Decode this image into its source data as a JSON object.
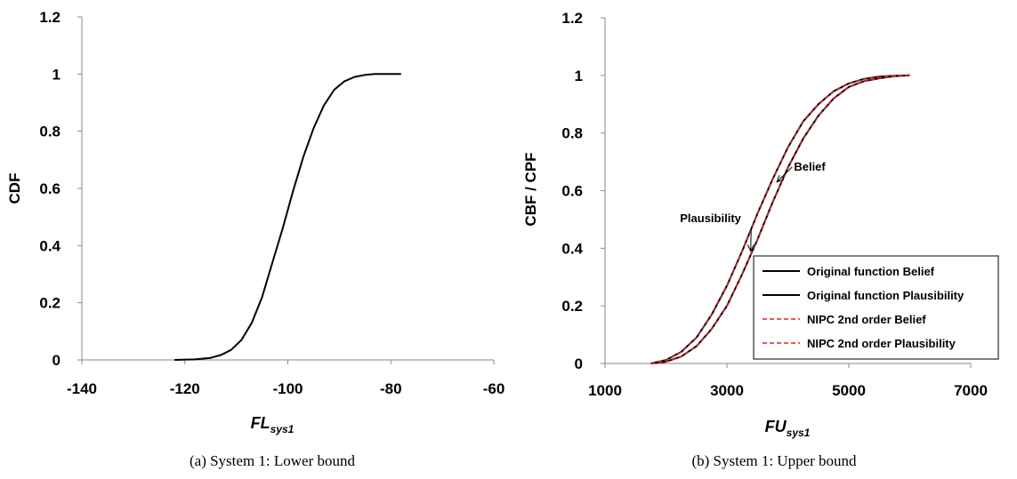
{
  "chart_data": [
    {
      "type": "line",
      "caption": "(a)  System 1: Lower bound",
      "ylabel": "CDF",
      "xlabel_main": "FL",
      "xlabel_sub": "sys1",
      "xlim": [
        -140,
        -60
      ],
      "ylim": [
        0,
        1.2
      ],
      "xticks": [
        "-140",
        "-120",
        "-100",
        "-80",
        "-60"
      ],
      "yticks": [
        "0",
        "0.2",
        "0.4",
        "0.6",
        "0.8",
        "1",
        "1.2"
      ],
      "series": [
        {
          "color": "#000000",
          "style": "solid",
          "x": [
            -122,
            -118,
            -115,
            -113,
            -111,
            -109,
            -107,
            -105,
            -103,
            -101,
            -99,
            -97,
            -95,
            -93,
            -91,
            -89,
            -87,
            -85,
            -83,
            -80,
            -78
          ],
          "y": [
            0.0,
            0.002,
            0.007,
            0.017,
            0.035,
            0.07,
            0.13,
            0.22,
            0.34,
            0.46,
            0.59,
            0.71,
            0.81,
            0.89,
            0.945,
            0.975,
            0.99,
            0.997,
            1.0,
            1.0,
            1.0
          ]
        }
      ]
    },
    {
      "type": "line",
      "caption": "(b)  System 1: Upper bound",
      "ylabel": "CBF / CPF",
      "xlabel_main": "FU",
      "xlabel_sub": "sys1",
      "xlim": [
        1000,
        7000
      ],
      "ylim": [
        0,
        1.2
      ],
      "xticks": [
        "1000",
        "3000",
        "5000",
        "7000"
      ],
      "yticks": [
        "0",
        "0.2",
        "0.4",
        "0.6",
        "0.8",
        "1",
        "1.2"
      ],
      "annotations": [
        {
          "text": "Belief",
          "x": 4100,
          "y": 0.67,
          "arrow_to": [
            3820,
            0.63
          ]
        },
        {
          "text": "Plausibility",
          "x": 2230,
          "y": 0.49,
          "arrow_to": [
            3390,
            0.39
          ]
        }
      ],
      "legend_position": "bottom-right",
      "series": [
        {
          "name": "Original function Belief",
          "color": "#000000",
          "style": "solid",
          "x": [
            1750,
            2000,
            2250,
            2500,
            2750,
            3000,
            3250,
            3500,
            3750,
            4000,
            4250,
            4500,
            4750,
            5000,
            5250,
            5500,
            5750,
            6000
          ],
          "y": [
            0.0,
            0.006,
            0.024,
            0.06,
            0.12,
            0.2,
            0.31,
            0.43,
            0.56,
            0.68,
            0.78,
            0.86,
            0.92,
            0.96,
            0.98,
            0.99,
            0.997,
            1.0
          ]
        },
        {
          "name": "Original function Plausibility",
          "color": "#000000",
          "style": "solid",
          "x": [
            1750,
            2000,
            2250,
            2500,
            2750,
            3000,
            3250,
            3500,
            3750,
            4000,
            4250,
            4500,
            4750,
            5000,
            5250,
            5500,
            5750,
            6000
          ],
          "y": [
            0.0,
            0.012,
            0.04,
            0.09,
            0.17,
            0.27,
            0.39,
            0.52,
            0.64,
            0.75,
            0.84,
            0.9,
            0.945,
            0.972,
            0.988,
            0.996,
            0.999,
            1.0
          ]
        },
        {
          "name": "NIPC 2nd order Belief",
          "color": "#e0202a",
          "style": "dashed",
          "x": [
            1750,
            2000,
            2250,
            2500,
            2750,
            3000,
            3250,
            3500,
            3750,
            4000,
            4250,
            4500,
            4750,
            5000,
            5250,
            5500,
            5750,
            6000
          ],
          "y": [
            0.0,
            0.006,
            0.024,
            0.06,
            0.12,
            0.2,
            0.31,
            0.43,
            0.56,
            0.68,
            0.78,
            0.86,
            0.92,
            0.96,
            0.98,
            0.99,
            0.997,
            1.0
          ]
        },
        {
          "name": "NIPC 2nd order Plausibility",
          "color": "#e0202a",
          "style": "dashed",
          "x": [
            1750,
            2000,
            2250,
            2500,
            2750,
            3000,
            3250,
            3500,
            3750,
            4000,
            4250,
            4500,
            4750,
            5000,
            5250,
            5500,
            5750,
            6000
          ],
          "y": [
            0.0,
            0.012,
            0.04,
            0.09,
            0.17,
            0.27,
            0.39,
            0.52,
            0.64,
            0.75,
            0.84,
            0.9,
            0.945,
            0.972,
            0.988,
            0.996,
            0.999,
            1.0
          ]
        }
      ]
    }
  ]
}
